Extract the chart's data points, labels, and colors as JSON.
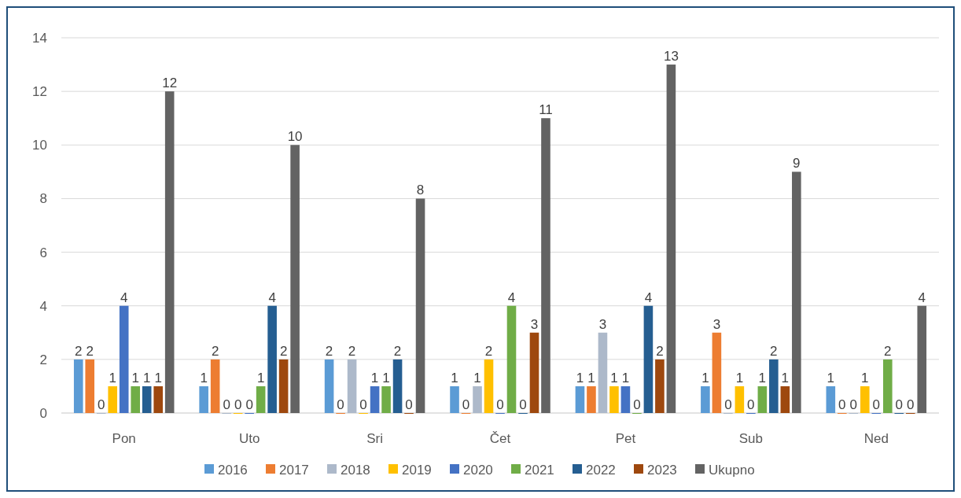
{
  "chart_data": {
    "type": "bar",
    "categories": [
      "Pon",
      "Uto",
      "Sri",
      "Čet",
      "Pet",
      "Sub",
      "Ned"
    ],
    "series": [
      {
        "name": "2016",
        "color": "#5b9bd5",
        "values": [
          2,
          1,
          2,
          1,
          1,
          1,
          1
        ]
      },
      {
        "name": "2017",
        "color": "#ed7d31",
        "values": [
          2,
          2,
          0,
          0,
          1,
          3,
          0
        ]
      },
      {
        "name": "2018",
        "color": "#adb9ca",
        "values": [
          0,
          0,
          2,
          1,
          3,
          0,
          0
        ]
      },
      {
        "name": "2019",
        "color": "#ffc000",
        "values": [
          1,
          0,
          0,
          2,
          1,
          1,
          1
        ]
      },
      {
        "name": "2020",
        "color": "#4472c4",
        "values": [
          4,
          0,
          1,
          0,
          1,
          0,
          0
        ]
      },
      {
        "name": "2021",
        "color": "#70ad47",
        "values": [
          1,
          1,
          1,
          4,
          0,
          1,
          2
        ]
      },
      {
        "name": "2022",
        "color": "#255e91",
        "values": [
          1,
          4,
          2,
          0,
          4,
          2,
          0
        ]
      },
      {
        "name": "2023",
        "color": "#9e480e",
        "values": [
          1,
          2,
          0,
          3,
          2,
          1,
          0
        ]
      },
      {
        "name": "Ukupno",
        "color": "#636363",
        "values": [
          12,
          10,
          8,
          11,
          13,
          9,
          4
        ]
      }
    ],
    "ylim": [
      0,
      14
    ],
    "yticks": [
      0,
      2,
      4,
      6,
      8,
      10,
      12,
      14
    ],
    "grid": "y",
    "legend": "bottom",
    "data_labels": true
  }
}
